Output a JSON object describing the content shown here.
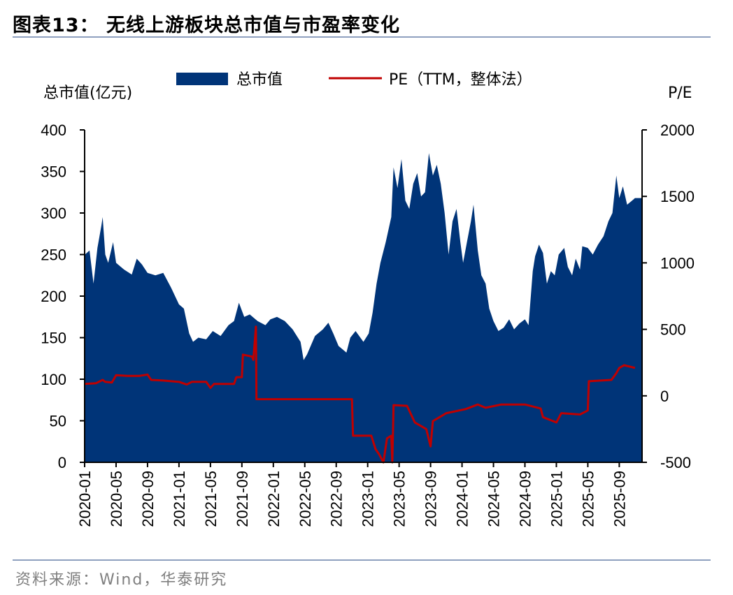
{
  "title": "图表13：  无线上游板块总市值与市盈率变化",
  "source": "资料来源：Wind，华泰研究",
  "chart_data": {
    "type": "area+line",
    "legend": [
      {
        "name": "总市值",
        "kind": "area",
        "color": "#003478"
      },
      {
        "name": "PE（TTM，整体法）",
        "kind": "line",
        "color": "#c00000"
      }
    ],
    "legend_position": "top-center",
    "left_axis": {
      "label": "总市值(亿元)",
      "range": [
        0,
        400
      ],
      "ticks": [
        "0",
        "50",
        "100",
        "150",
        "200",
        "250",
        "300",
        "350",
        "400"
      ]
    },
    "right_axis": {
      "label": "P/E",
      "range": [
        -500,
        2000
      ],
      "ticks": [
        "-500",
        "0",
        "500",
        "1000",
        "1500",
        "2000"
      ]
    },
    "x_ticks": [
      "2020-01",
      "2020-05",
      "2020-09",
      "2021-01",
      "2021-05",
      "2021-09",
      "2022-01",
      "2022-05",
      "2022-09",
      "2023-01",
      "2023-05",
      "2023-09",
      "2024-01",
      "2024-05",
      "2024-09",
      "2025-01",
      "2025-05",
      "2025-09"
    ],
    "x_range": [
      "2020-01",
      "2025-11"
    ],
    "grid": false,
    "market_cap_series": {
      "name": "总市值",
      "points": [
        [
          "2020-01-02",
          250
        ],
        [
          "2020-01-20",
          255
        ],
        [
          "2020-02-05",
          215
        ],
        [
          "2020-02-20",
          258
        ],
        [
          "2020-03-05",
          285
        ],
        [
          "2020-03-10",
          295
        ],
        [
          "2020-03-20",
          250
        ],
        [
          "2020-04-01",
          240
        ],
        [
          "2020-04-20",
          265
        ],
        [
          "2020-05-01",
          240
        ],
        [
          "2020-06-01",
          232
        ],
        [
          "2020-07-01",
          226
        ],
        [
          "2020-07-20",
          245
        ],
        [
          "2020-08-10",
          238
        ],
        [
          "2020-09-01",
          228
        ],
        [
          "2020-10-01",
          225
        ],
        [
          "2020-11-01",
          228
        ],
        [
          "2020-12-01",
          210
        ],
        [
          "2021-01-01",
          190
        ],
        [
          "2021-01-20",
          185
        ],
        [
          "2021-02-10",
          155
        ],
        [
          "2021-02-25",
          145
        ],
        [
          "2021-03-15",
          150
        ],
        [
          "2021-04-15",
          148
        ],
        [
          "2021-05-10",
          158
        ],
        [
          "2021-06-10",
          152
        ],
        [
          "2021-07-10",
          165
        ],
        [
          "2021-08-01",
          170
        ],
        [
          "2021-08-20",
          192
        ],
        [
          "2021-09-10",
          175
        ],
        [
          "2021-10-01",
          178
        ],
        [
          "2021-11-01",
          170
        ],
        [
          "2021-12-01",
          165
        ],
        [
          "2021-12-20",
          172
        ],
        [
          "2022-01-15",
          175
        ],
        [
          "2022-02-15",
          170
        ],
        [
          "2022-03-15",
          160
        ],
        [
          "2022-04-15",
          145
        ],
        [
          "2022-04-27",
          123
        ],
        [
          "2022-05-10",
          130
        ],
        [
          "2022-06-10",
          152
        ],
        [
          "2022-07-10",
          160
        ],
        [
          "2022-08-01",
          168
        ],
        [
          "2022-08-20",
          155
        ],
        [
          "2022-09-10",
          140
        ],
        [
          "2022-10-10",
          132
        ],
        [
          "2022-10-25",
          150
        ],
        [
          "2022-11-15",
          158
        ],
        [
          "2022-12-15",
          145
        ],
        [
          "2023-01-05",
          155
        ],
        [
          "2023-01-20",
          180
        ],
        [
          "2023-02-05",
          215
        ],
        [
          "2023-02-20",
          240
        ],
        [
          "2023-03-10",
          265
        ],
        [
          "2023-04-01",
          295
        ],
        [
          "2023-04-10",
          355
        ],
        [
          "2023-04-25",
          330
        ],
        [
          "2023-05-10",
          365
        ],
        [
          "2023-05-25",
          315
        ],
        [
          "2023-06-10",
          305
        ],
        [
          "2023-06-25",
          335
        ],
        [
          "2023-07-10",
          348
        ],
        [
          "2023-07-25",
          320
        ],
        [
          "2023-08-10",
          325
        ],
        [
          "2023-08-25",
          372
        ],
        [
          "2023-09-10",
          345
        ],
        [
          "2023-09-25",
          358
        ],
        [
          "2023-10-10",
          335
        ],
        [
          "2023-10-25",
          300
        ],
        [
          "2023-11-10",
          250
        ],
        [
          "2023-11-25",
          290
        ],
        [
          "2023-12-10",
          305
        ],
        [
          "2023-12-25",
          265
        ],
        [
          "2024-01-05",
          240
        ],
        [
          "2024-01-20",
          265
        ],
        [
          "2024-02-05",
          290
        ],
        [
          "2024-02-15",
          310
        ],
        [
          "2024-03-01",
          255
        ],
        [
          "2024-03-15",
          225
        ],
        [
          "2024-04-01",
          215
        ],
        [
          "2024-04-15",
          185
        ],
        [
          "2024-05-01",
          170
        ],
        [
          "2024-05-20",
          158
        ],
        [
          "2024-06-10",
          162
        ],
        [
          "2024-07-01",
          172
        ],
        [
          "2024-07-20",
          160
        ],
        [
          "2024-08-10",
          167
        ],
        [
          "2024-09-01",
          172
        ],
        [
          "2024-09-15",
          165
        ],
        [
          "2024-10-01",
          230
        ],
        [
          "2024-10-10",
          248
        ],
        [
          "2024-10-25",
          262
        ],
        [
          "2024-11-10",
          252
        ],
        [
          "2024-11-25",
          215
        ],
        [
          "2024-12-10",
          230
        ],
        [
          "2024-12-25",
          225
        ],
        [
          "2025-01-10",
          250
        ],
        [
          "2025-02-01",
          258
        ],
        [
          "2025-02-15",
          235
        ],
        [
          "2025-03-01",
          225
        ],
        [
          "2025-03-15",
          245
        ],
        [
          "2025-04-01",
          232
        ],
        [
          "2025-04-10",
          260
        ],
        [
          "2025-05-01",
          258
        ],
        [
          "2025-05-20",
          250
        ],
        [
          "2025-06-10",
          262
        ],
        [
          "2025-07-01",
          272
        ],
        [
          "2025-07-20",
          290
        ],
        [
          "2025-08-05",
          300
        ],
        [
          "2025-08-20",
          345
        ],
        [
          "2025-09-01",
          318
        ],
        [
          "2025-09-15",
          332
        ],
        [
          "2025-10-01",
          310
        ],
        [
          "2025-10-20",
          315
        ],
        [
          "2025-11-01",
          318
        ]
      ]
    },
    "pe_series": {
      "name": "PE（TTM，整体法）",
      "points": [
        [
          "2020-01-02",
          90
        ],
        [
          "2020-02-15",
          95
        ],
        [
          "2020-03-10",
          120
        ],
        [
          "2020-03-20",
          105
        ],
        [
          "2020-04-15",
          100
        ],
        [
          "2020-05-01",
          155
        ],
        [
          "2020-06-15",
          150
        ],
        [
          "2020-08-01",
          150
        ],
        [
          "2020-09-01",
          160
        ],
        [
          "2020-09-15",
          120
        ],
        [
          "2020-11-01",
          115
        ],
        [
          "2021-01-01",
          105
        ],
        [
          "2021-02-01",
          85
        ],
        [
          "2021-02-20",
          105
        ],
        [
          "2021-04-15",
          105
        ],
        [
          "2021-05-01",
          60
        ],
        [
          "2021-05-15",
          90
        ],
        [
          "2021-08-01",
          90
        ],
        [
          "2021-08-10",
          140
        ],
        [
          "2021-09-01",
          140
        ],
        [
          "2021-09-05",
          310
        ],
        [
          "2021-10-10",
          295
        ],
        [
          "2021-10-15",
          270
        ],
        [
          "2021-10-25",
          520
        ],
        [
          "2021-10-27",
          -25
        ],
        [
          "2022-11-01",
          -25
        ],
        [
          "2022-11-05",
          -300
        ],
        [
          "2023-01-15",
          -300
        ],
        [
          "2023-02-01",
          -400
        ],
        [
          "2023-02-15",
          -440
        ],
        [
          "2023-03-01",
          -500
        ],
        [
          "2023-03-15",
          -320
        ],
        [
          "2023-04-01",
          -300
        ],
        [
          "2023-04-05",
          -500
        ],
        [
          "2023-04-10",
          -70
        ],
        [
          "2023-06-01",
          -75
        ],
        [
          "2023-07-01",
          -200
        ],
        [
          "2023-08-15",
          -250
        ],
        [
          "2023-09-01",
          -380
        ],
        [
          "2023-09-10",
          -190
        ],
        [
          "2023-11-01",
          -130
        ],
        [
          "2024-01-15",
          -100
        ],
        [
          "2024-03-01",
          -65
        ],
        [
          "2024-04-01",
          -90
        ],
        [
          "2024-06-01",
          -65
        ],
        [
          "2024-09-01",
          -65
        ],
        [
          "2024-11-01",
          -95
        ],
        [
          "2024-11-10",
          -160
        ],
        [
          "2025-01-01",
          -200
        ],
        [
          "2025-01-20",
          -130
        ],
        [
          "2025-04-01",
          -140
        ],
        [
          "2025-05-01",
          -110
        ],
        [
          "2025-05-05",
          110
        ],
        [
          "2025-08-01",
          120
        ],
        [
          "2025-08-20",
          170
        ],
        [
          "2025-09-01",
          210
        ],
        [
          "2025-09-20",
          230
        ],
        [
          "2025-11-01",
          210
        ]
      ]
    }
  }
}
